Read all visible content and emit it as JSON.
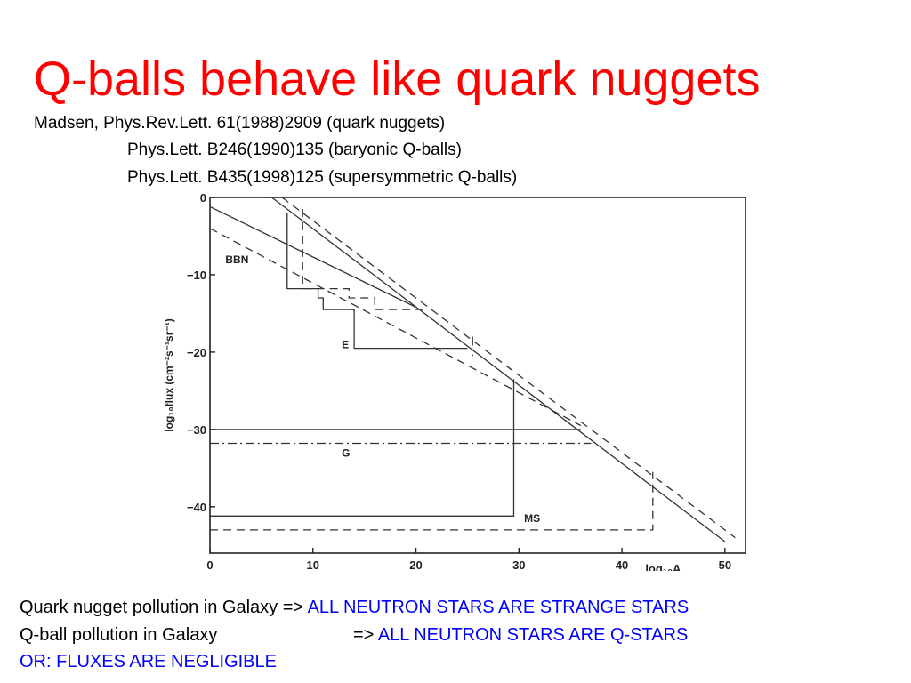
{
  "slide": {
    "title": "Q-balls behave like quark nuggets",
    "references": [
      "Madsen, Phys.Rev.Lett. 61(1988)2909 (quark nuggets)",
      "Phys.Lett. B246(1990)135 (baryonic Q-balls)",
      "Phys.Lett. B435(1998)125 (supersymmetric Q-balls)"
    ],
    "conclusions": [
      {
        "left": "Quark nugget pollution in Galaxy",
        "arrow": "=>",
        "right": "ALL NEUTRON STARS ARE STRANGE STARS"
      },
      {
        "left": "Q-ball pollution in Galaxy",
        "arrow": "=>",
        "right": "ALL NEUTRON STARS ARE Q-STARS"
      }
    ],
    "final_note": "OR: FLUXES ARE NEGLIGIBLE",
    "colors": {
      "title": "#ff0000",
      "highlight": "#0000ff",
      "text": "#000000"
    }
  },
  "chart_data": {
    "type": "line",
    "xlabel": "log₁₀A",
    "ylabel": "log₁₀flux  (cm⁻²s⁻¹sr⁻¹)",
    "xlim": [
      0,
      52
    ],
    "ylim": [
      -46,
      0
    ],
    "xticks": [
      0,
      10,
      20,
      30,
      40,
      50
    ],
    "yticks": [
      0,
      -10,
      -20,
      -30,
      -40
    ],
    "x_tick_labels": [
      "0",
      "10",
      "20",
      "30",
      "40",
      "50"
    ],
    "y_tick_labels": [
      "0",
      "−10",
      "−20",
      "−30",
      "−40"
    ],
    "grid": false,
    "region_labels": [
      {
        "text": "BBN",
        "x": 1.5,
        "y": -8.5
      },
      {
        "text": "E",
        "x": 12.8,
        "y": -19.5
      },
      {
        "text": "G",
        "x": 12.8,
        "y": -33.5
      },
      {
        "text": "MS",
        "x": 30.5,
        "y": -42
      }
    ],
    "series": [
      {
        "style": "solid",
        "points": [
          [
            6,
            0
          ],
          [
            50,
            -44.5
          ]
        ]
      },
      {
        "style": "dashed",
        "points": [
          [
            7,
            0
          ],
          [
            51,
            -44
          ]
        ]
      },
      {
        "style": "solid",
        "points": [
          [
            0,
            -1.2
          ],
          [
            20,
            -14.2
          ]
        ]
      },
      {
        "style": "dashed",
        "points": [
          [
            0,
            -4
          ],
          [
            36,
            -29.5
          ]
        ]
      },
      {
        "style": "solid",
        "points": [
          [
            7.5,
            -2
          ],
          [
            7.5,
            -11.8
          ],
          [
            10.5,
            -11.8
          ],
          [
            10.5,
            -13
          ],
          [
            11,
            -13
          ],
          [
            11,
            -14.5
          ],
          [
            14,
            -14.5
          ],
          [
            14,
            -19.5
          ],
          [
            25,
            -19.5
          ]
        ]
      },
      {
        "style": "dashed",
        "points": [
          [
            9,
            -1.5
          ],
          [
            9,
            -11.8
          ],
          [
            13.5,
            -11.8
          ],
          [
            13.5,
            -13
          ],
          [
            16,
            -13
          ],
          [
            16,
            -14.5
          ],
          [
            21,
            -14.5
          ]
        ]
      },
      {
        "style": "dashdot",
        "points": [
          [
            25.5,
            -18
          ],
          [
            25.5,
            -20.5
          ]
        ]
      },
      {
        "style": "solid",
        "points": [
          [
            0,
            -30
          ],
          [
            36,
            -30
          ]
        ]
      },
      {
        "style": "dashdot",
        "points": [
          [
            0,
            -31.8
          ],
          [
            37,
            -31.8
          ]
        ]
      },
      {
        "style": "solid",
        "points": [
          [
            0,
            -41.2
          ],
          [
            29.5,
            -41.2
          ],
          [
            29.5,
            -23.5
          ]
        ]
      },
      {
        "style": "dashed",
        "points": [
          [
            0,
            -43
          ],
          [
            43,
            -43
          ],
          [
            43,
            -35.5
          ]
        ]
      }
    ]
  }
}
